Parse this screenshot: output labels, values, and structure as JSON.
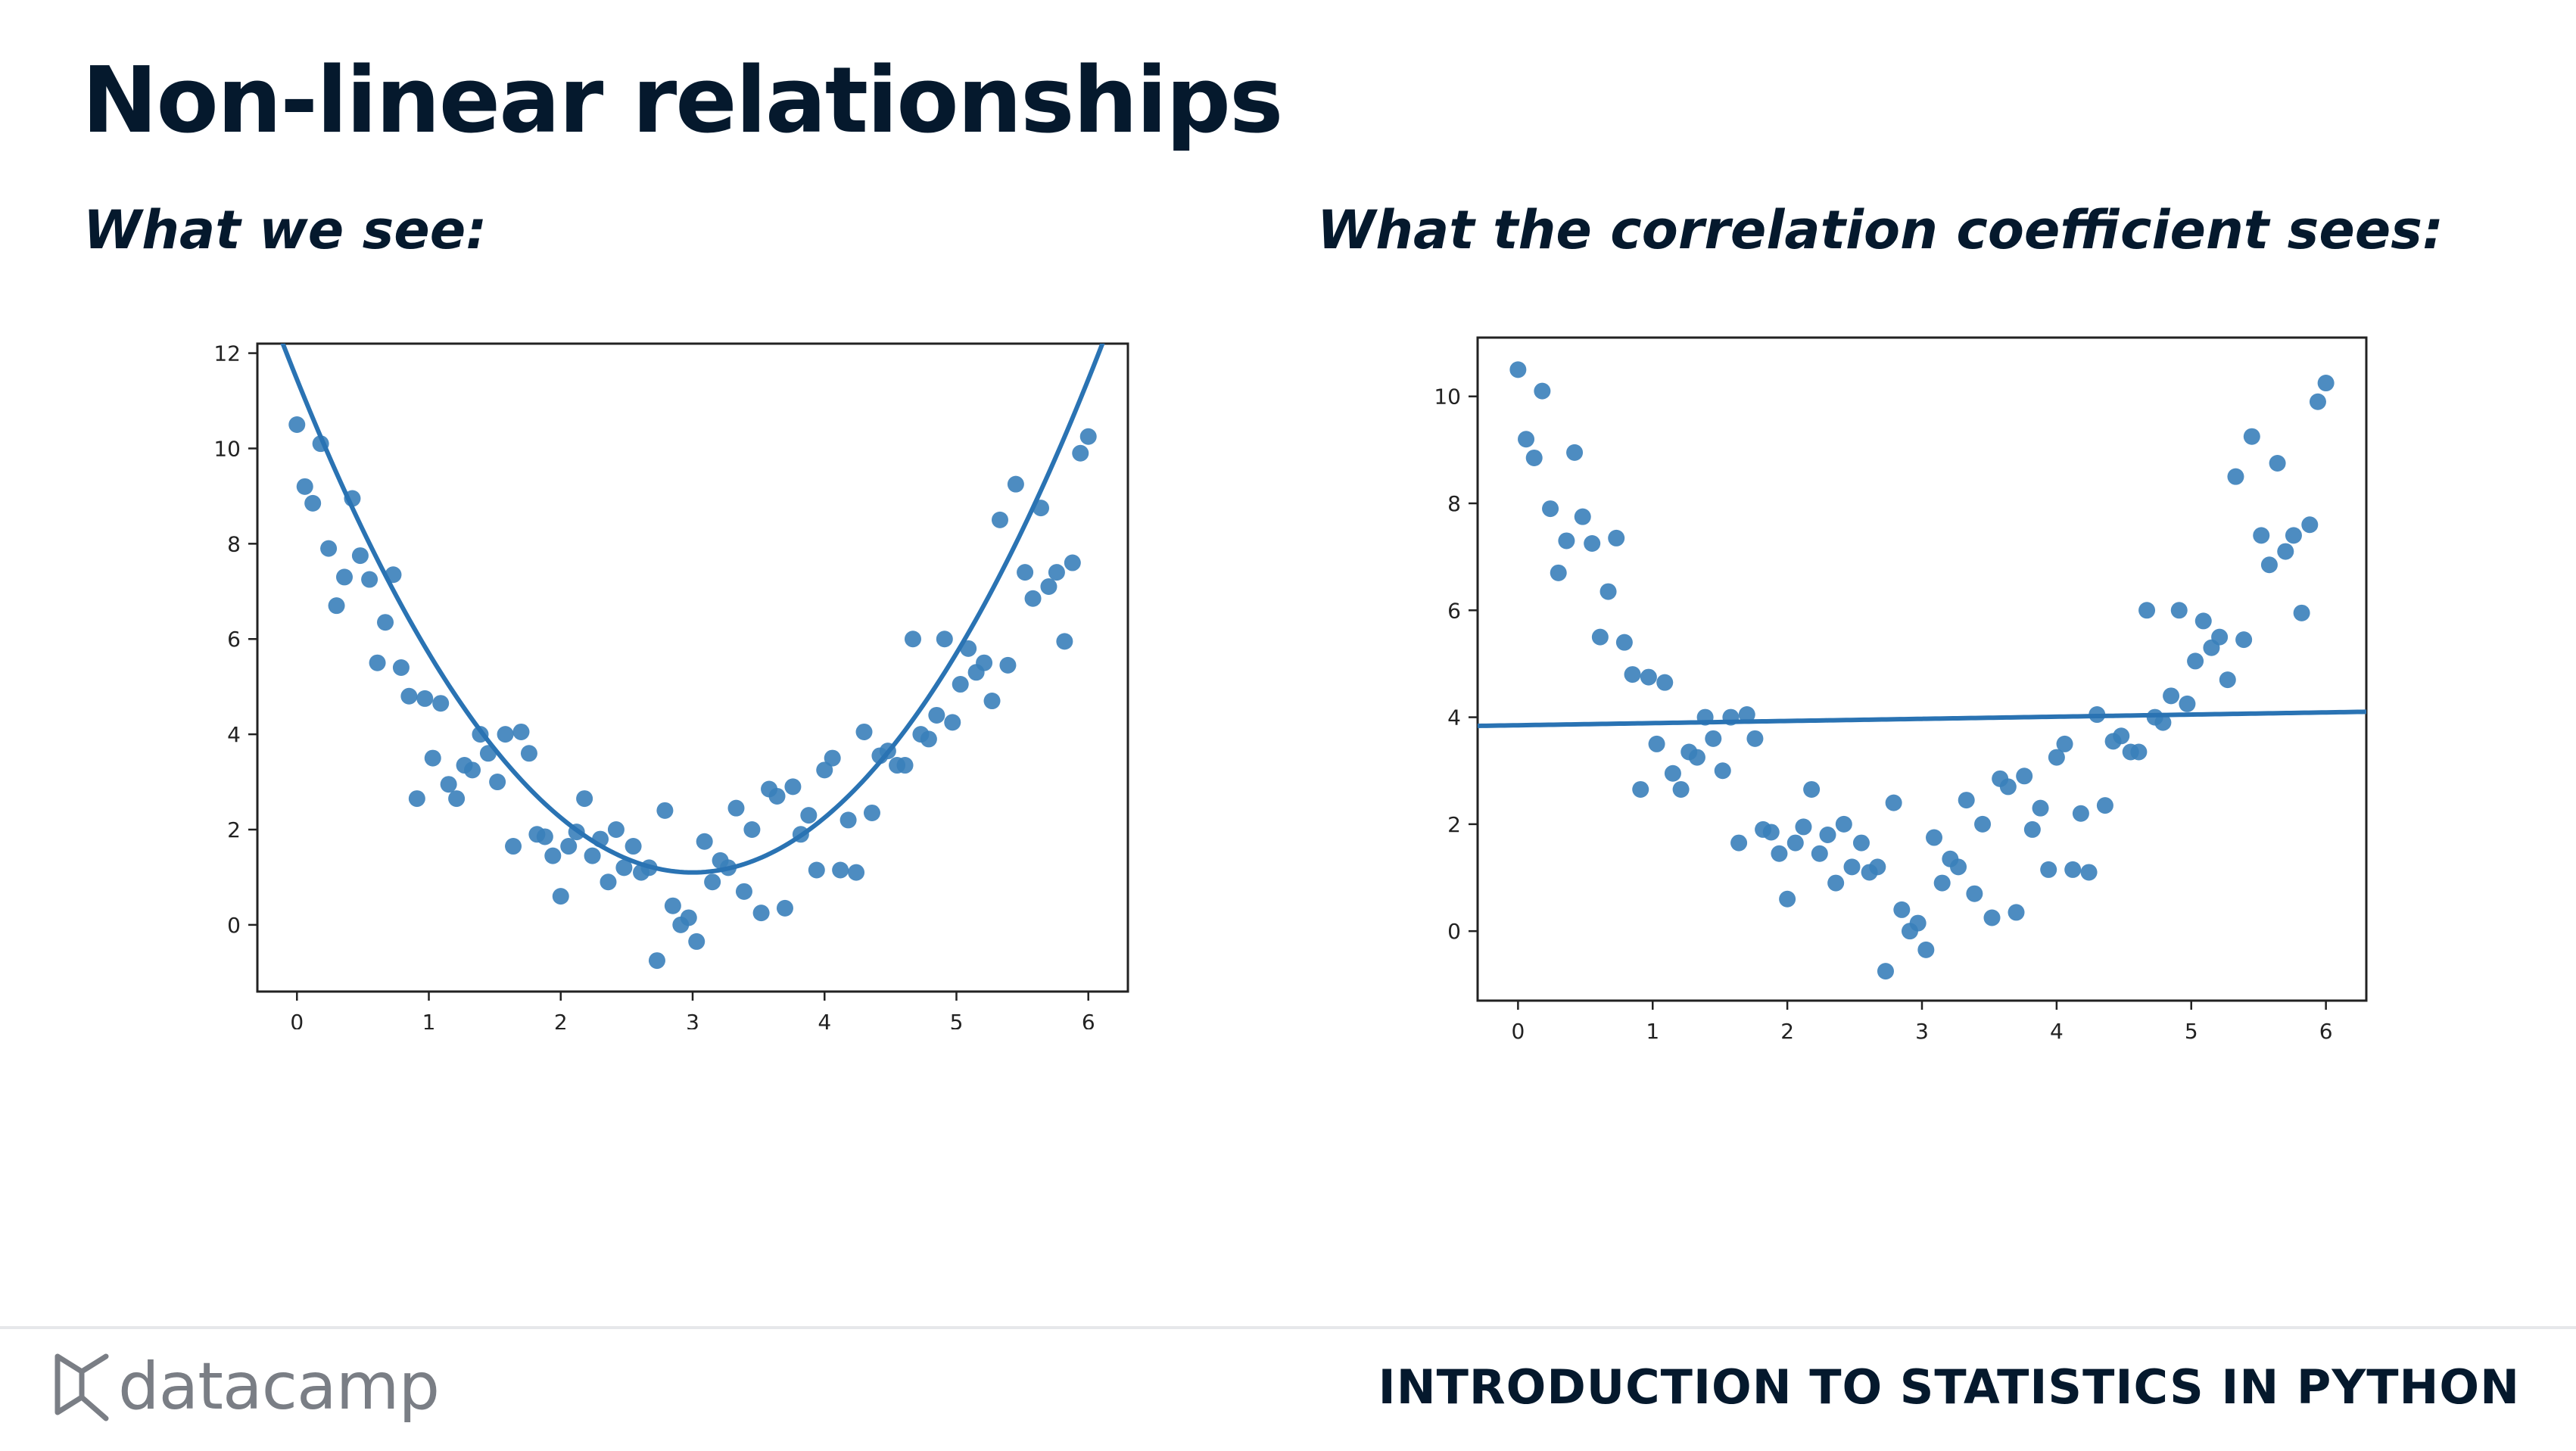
{
  "title": "Non-linear relationships",
  "subtitle_left": "What we see:",
  "subtitle_right": "What the correlation coefficient sees:",
  "footer": {
    "logo_text": "datacamp",
    "course": "INTRODUCTION TO STATISTICS IN PYTHON"
  },
  "colors": {
    "point": "#3a7fba",
    "line": "#2a73b3",
    "text": "#05192d"
  },
  "chart_data": [
    {
      "type": "scatter",
      "fit": "quadratic",
      "fit_coefficients": {
        "a": 1.15,
        "b": -6.9,
        "c": 11.45
      },
      "xlim": [
        -0.3,
        6.3
      ],
      "ylim": [
        -1.4,
        12.2
      ],
      "xticks": [
        0,
        1,
        2,
        3,
        4,
        5,
        6
      ],
      "yticks": [
        0,
        2,
        4,
        6,
        8,
        10,
        12
      ],
      "x": [
        0,
        0.06,
        0.12,
        0.18,
        0.24,
        0.3,
        0.36,
        0.42,
        0.48,
        0.55,
        0.61,
        0.67,
        0.73,
        0.79,
        0.85,
        0.91,
        0.97,
        1.03,
        1.09,
        1.15,
        1.21,
        1.27,
        1.33,
        1.39,
        1.45,
        1.52,
        1.58,
        1.64,
        1.7,
        1.76,
        1.82,
        1.88,
        1.94,
        2.0,
        2.06,
        2.12,
        2.18,
        2.24,
        2.3,
        2.36,
        2.42,
        2.48,
        2.55,
        2.61,
        2.67,
        2.73,
        2.79,
        2.85,
        2.91,
        2.97,
        3.03,
        3.09,
        3.15,
        3.21,
        3.27,
        3.33,
        3.39,
        3.45,
        3.52,
        3.58,
        3.64,
        3.7,
        3.76,
        3.82,
        3.88,
        3.94,
        4.0,
        4.06,
        4.12,
        4.18,
        4.24,
        4.3,
        4.36,
        4.42,
        4.48,
        4.55,
        4.61,
        4.67,
        4.73,
        4.79,
        4.85,
        4.91,
        4.97,
        5.03,
        5.09,
        5.15,
        5.21,
        5.27,
        5.33,
        5.39,
        5.45,
        5.52,
        5.58,
        5.64,
        5.7,
        5.76,
        5.82,
        5.88,
        5.94,
        6.0
      ],
      "y": [
        10.5,
        9.2,
        8.85,
        10.1,
        7.9,
        6.7,
        7.3,
        8.95,
        7.75,
        7.25,
        5.5,
        6.35,
        7.35,
        5.4,
        4.8,
        2.65,
        4.75,
        3.5,
        4.65,
        2.95,
        2.65,
        3.35,
        3.25,
        4.0,
        3.6,
        3.0,
        4.0,
        1.65,
        4.05,
        3.6,
        1.9,
        1.85,
        1.45,
        0.6,
        1.65,
        1.95,
        2.65,
        1.45,
        1.8,
        0.9,
        2.0,
        1.2,
        1.65,
        1.1,
        1.2,
        -0.75,
        2.4,
        0.4,
        0.0,
        0.15,
        -0.35,
        1.75,
        0.9,
        1.35,
        1.2,
        2.45,
        0.7,
        2.0,
        0.25,
        2.85,
        2.7,
        0.35,
        2.9,
        1.9,
        2.3,
        1.15,
        3.25,
        3.5,
        1.15,
        2.2,
        1.1,
        4.05,
        2.35,
        3.55,
        3.65,
        3.35,
        3.35,
        6.0,
        4.0,
        3.9,
        4.4,
        6.0,
        4.25,
        5.05,
        5.8,
        5.3,
        5.5,
        4.7,
        8.5,
        5.45,
        9.25,
        7.4,
        6.85,
        8.75,
        7.1,
        7.4,
        5.95,
        7.6,
        9.9,
        10.25
      ]
    },
    {
      "type": "scatter",
      "fit": "linear",
      "fit_coefficients": {
        "slope": 0.04,
        "intercept": 3.85
      },
      "xlim": [
        -0.3,
        6.3
      ],
      "ylim": [
        -1.3,
        11.1
      ],
      "xticks": [
        0,
        1,
        2,
        3,
        4,
        5,
        6
      ],
      "yticks": [
        0,
        2,
        4,
        6,
        8,
        10
      ],
      "x": [
        0,
        0.06,
        0.12,
        0.18,
        0.24,
        0.3,
        0.36,
        0.42,
        0.48,
        0.55,
        0.61,
        0.67,
        0.73,
        0.79,
        0.85,
        0.91,
        0.97,
        1.03,
        1.09,
        1.15,
        1.21,
        1.27,
        1.33,
        1.39,
        1.45,
        1.52,
        1.58,
        1.64,
        1.7,
        1.76,
        1.82,
        1.88,
        1.94,
        2.0,
        2.06,
        2.12,
        2.18,
        2.24,
        2.3,
        2.36,
        2.42,
        2.48,
        2.55,
        2.61,
        2.67,
        2.73,
        2.79,
        2.85,
        2.91,
        2.97,
        3.03,
        3.09,
        3.15,
        3.21,
        3.27,
        3.33,
        3.39,
        3.45,
        3.52,
        3.58,
        3.64,
        3.7,
        3.76,
        3.82,
        3.88,
        3.94,
        4.0,
        4.06,
        4.12,
        4.18,
        4.24,
        4.3,
        4.36,
        4.42,
        4.48,
        4.55,
        4.61,
        4.67,
        4.73,
        4.79,
        4.85,
        4.91,
        4.97,
        5.03,
        5.09,
        5.15,
        5.21,
        5.27,
        5.33,
        5.39,
        5.45,
        5.52,
        5.58,
        5.64,
        5.7,
        5.76,
        5.82,
        5.88,
        5.94,
        6.0
      ],
      "y": [
        10.5,
        9.2,
        8.85,
        10.1,
        7.9,
        6.7,
        7.3,
        8.95,
        7.75,
        7.25,
        5.5,
        6.35,
        7.35,
        5.4,
        4.8,
        2.65,
        4.75,
        3.5,
        4.65,
        2.95,
        2.65,
        3.35,
        3.25,
        4.0,
        3.6,
        3.0,
        4.0,
        1.65,
        4.05,
        3.6,
        1.9,
        1.85,
        1.45,
        0.6,
        1.65,
        1.95,
        2.65,
        1.45,
        1.8,
        0.9,
        2.0,
        1.2,
        1.65,
        1.1,
        1.2,
        -0.75,
        2.4,
        0.4,
        0.0,
        0.15,
        -0.35,
        1.75,
        0.9,
        1.35,
        1.2,
        2.45,
        0.7,
        2.0,
        0.25,
        2.85,
        2.7,
        0.35,
        2.9,
        1.9,
        2.3,
        1.15,
        3.25,
        3.5,
        1.15,
        2.2,
        1.1,
        4.05,
        2.35,
        3.55,
        3.65,
        3.35,
        3.35,
        6.0,
        4.0,
        3.9,
        4.4,
        6.0,
        4.25,
        5.05,
        5.8,
        5.3,
        5.5,
        4.7,
        8.5,
        5.45,
        9.25,
        7.4,
        6.85,
        8.75,
        7.1,
        7.4,
        5.95,
        7.6,
        9.9,
        10.25
      ]
    }
  ]
}
